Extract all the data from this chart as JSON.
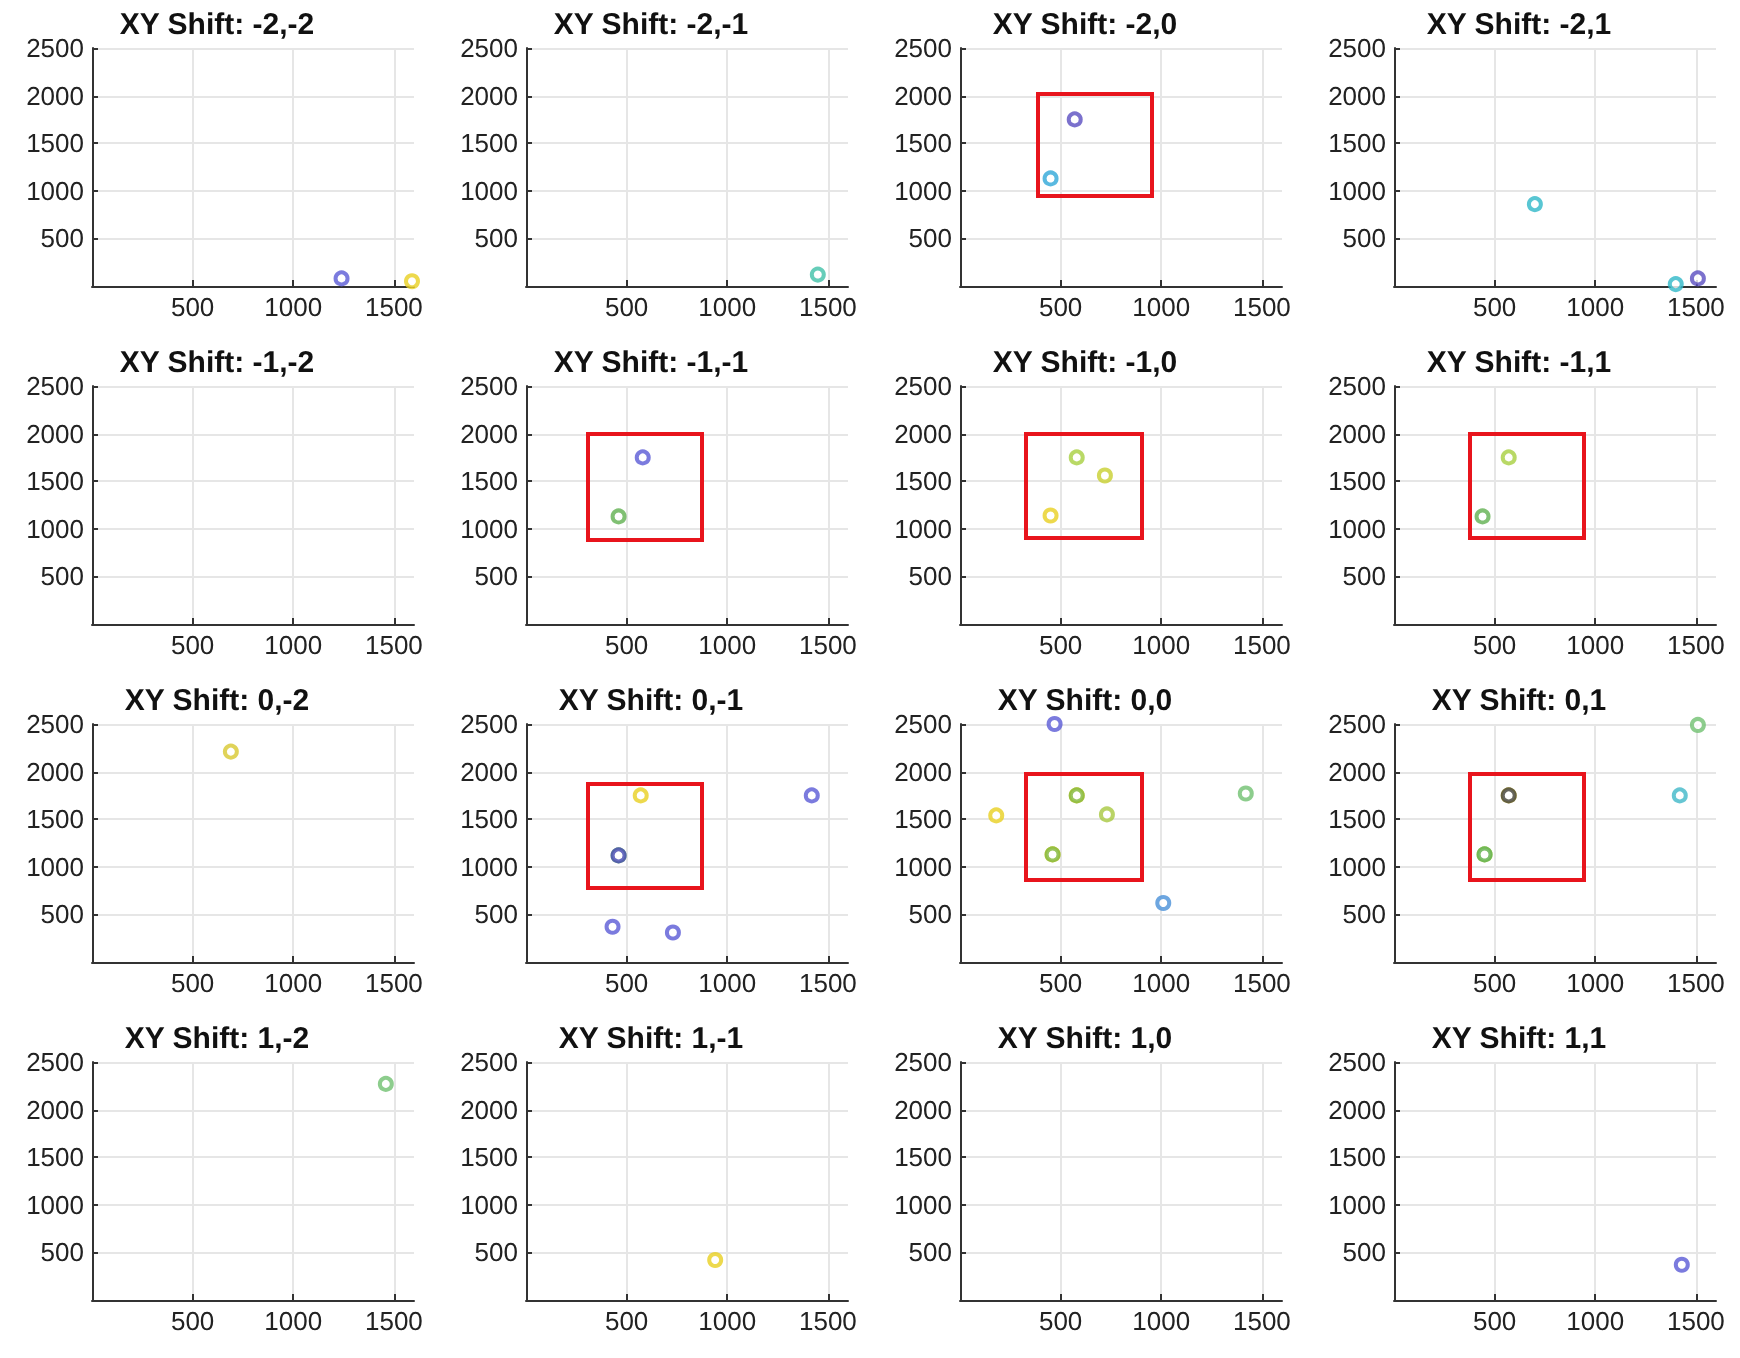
{
  "chart_data": [
    {
      "type": "scatter",
      "title": "XY Shift: -2,-2",
      "xlim": [
        0,
        1600
      ],
      "ylim": [
        0,
        2500
      ],
      "xticks": [
        500,
        1000,
        1500
      ],
      "yticks": [
        500,
        1000,
        1500,
        2000,
        2500
      ],
      "grid": true,
      "marker": "circle",
      "series": [
        {
          "type": "scatter",
          "x": [
            1240,
            1590
          ],
          "values": [
            80,
            50
          ],
          "colors": [
            "#5a5ad6",
            "#e8d020"
          ]
        }
      ]
    },
    {
      "type": "scatter",
      "title": "XY Shift: -2,-1",
      "xlim": [
        0,
        1600
      ],
      "ylim": [
        0,
        2500
      ],
      "xticks": [
        500,
        1000,
        1500
      ],
      "yticks": [
        500,
        1000,
        1500,
        2000,
        2500
      ],
      "grid": true,
      "marker": "circle",
      "series": [
        {
          "type": "scatter",
          "x": [
            1450
          ],
          "values": [
            120
          ],
          "colors": [
            "#40c0a8"
          ]
        }
      ]
    },
    {
      "type": "scatter",
      "title": "XY Shift: -2,0",
      "xlim": [
        0,
        1600
      ],
      "ylim": [
        0,
        2500
      ],
      "xticks": [
        500,
        1000,
        1500
      ],
      "yticks": [
        500,
        1000,
        1500,
        2000,
        2500
      ],
      "grid": true,
      "marker": "circle",
      "series": [
        {
          "type": "scatter",
          "x": [
            570,
            450
          ],
          "values": [
            1750,
            1130
          ],
          "colors": [
            "#5a4ec0",
            "#30a8d8"
          ]
        }
      ]
    },
    {
      "type": "scatter",
      "title": "XY Shift: -2,1",
      "xlim": [
        0,
        1600
      ],
      "ylim": [
        0,
        2500
      ],
      "xticks": [
        500,
        1000,
        1500
      ],
      "yticks": [
        500,
        1000,
        1500,
        2000,
        2500
      ],
      "grid": true,
      "marker": "circle",
      "series": [
        {
          "type": "scatter",
          "x": [
            700,
            1400,
            1510
          ],
          "values": [
            860,
            20,
            80
          ],
          "colors": [
            "#30b8c8",
            "#30b8c8",
            "#5a4ec0"
          ]
        }
      ]
    },
    {
      "type": "scatter",
      "title": "XY Shift: -1,-2",
      "xlim": [
        0,
        1600
      ],
      "ylim": [
        0,
        2500
      ],
      "xticks": [
        500,
        1000,
        1500
      ],
      "yticks": [
        500,
        1000,
        1500,
        2000,
        2500
      ],
      "grid": true
    },
    {
      "type": "scatter",
      "title": "XY Shift: -1,-1",
      "xlim": [
        0,
        1600
      ],
      "ylim": [
        0,
        2500
      ],
      "xticks": [
        500,
        1000,
        1500
      ],
      "yticks": [
        500,
        1000,
        1500,
        2000,
        2500
      ],
      "grid": true,
      "marker": "circle",
      "series": [
        {
          "type": "scatter",
          "x": [
            580,
            460
          ],
          "values": [
            1750,
            1130
          ],
          "colors": [
            "#5a5ad6",
            "#60b050"
          ]
        }
      ]
    },
    {
      "type": "scatter",
      "title": "XY Shift: -1,0",
      "xlim": [
        0,
        1600
      ],
      "ylim": [
        0,
        2500
      ],
      "xticks": [
        500,
        1000,
        1500
      ],
      "yticks": [
        500,
        1000,
        1500,
        2000,
        2500
      ],
      "grid": true,
      "marker": "circle",
      "series": [
        {
          "type": "scatter",
          "x": [
            580,
            720,
            450
          ],
          "values": [
            1750,
            1560,
            1140
          ],
          "colors": [
            "#a8d040",
            "#c8d030",
            "#e8d020"
          ]
        }
      ]
    },
    {
      "type": "scatter",
      "title": "XY Shift: -1,1",
      "xlim": [
        0,
        1600
      ],
      "ylim": [
        0,
        2500
      ],
      "xticks": [
        500,
        1000,
        1500
      ],
      "yticks": [
        500,
        1000,
        1500,
        2000,
        2500
      ],
      "grid": true,
      "marker": "circle",
      "series": [
        {
          "type": "scatter",
          "x": [
            570,
            440
          ],
          "values": [
            1750,
            1130
          ],
          "colors": [
            "#a8d040",
            "#60b050"
          ]
        }
      ]
    },
    {
      "type": "scatter",
      "title": "XY Shift: 0,-2",
      "xlim": [
        0,
        1600
      ],
      "ylim": [
        0,
        2500
      ],
      "xticks": [
        500,
        1000,
        1500
      ],
      "yticks": [
        500,
        1000,
        1500,
        2000,
        2500
      ],
      "grid": true,
      "marker": "circle",
      "series": [
        {
          "type": "scatter",
          "x": [
            690
          ],
          "values": [
            2210
          ],
          "colors": [
            "#d8c830"
          ]
        }
      ]
    },
    {
      "type": "scatter",
      "title": "XY Shift: 0,-1",
      "xlim": [
        0,
        1600
      ],
      "ylim": [
        0,
        2500
      ],
      "xticks": [
        500,
        1000,
        1500
      ],
      "yticks": [
        500,
        1000,
        1500,
        2000,
        2500
      ],
      "grid": true,
      "marker": "circle",
      "series": [
        {
          "type": "scatter",
          "x": [
            570,
            460,
            460,
            1420,
            430,
            730
          ],
          "values": [
            1750,
            1120,
            1120,
            1750,
            370,
            310
          ],
          "colors": [
            "#e8d020",
            "#60b050",
            "#4848b8",
            "#5a5ad6",
            "#5a5ad6",
            "#5a5ad6"
          ]
        }
      ]
    },
    {
      "type": "scatter",
      "title": "XY Shift: 0,0",
      "xlim": [
        0,
        1600
      ],
      "ylim": [
        0,
        2500
      ],
      "xticks": [
        500,
        1000,
        1500
      ],
      "yticks": [
        500,
        1000,
        1500,
        2000,
        2500
      ],
      "grid": true,
      "marker": "circle",
      "series": [
        {
          "type": "scatter",
          "x": [
            470,
            180,
            580,
            580,
            730,
            460,
            460,
            1420,
            1010
          ],
          "values": [
            2500,
            1540,
            1750,
            1750,
            1550,
            1130,
            1130,
            1770,
            620
          ],
          "colors": [
            "#5a5ad6",
            "#e8d020",
            "#e8d020",
            "#80b840",
            "#a8c840",
            "#e8d020",
            "#80b840",
            "#70c070",
            "#4890d8"
          ]
        }
      ]
    },
    {
      "type": "scatter",
      "title": "XY Shift: 0,1",
      "xlim": [
        0,
        1600
      ],
      "ylim": [
        0,
        2500
      ],
      "xticks": [
        500,
        1000,
        1500
      ],
      "yticks": [
        500,
        1000,
        1500,
        2000,
        2500
      ],
      "grid": true,
      "marker": "circle",
      "series": [
        {
          "type": "scatter",
          "x": [
            1510,
            570,
            570,
            450,
            450,
            1420
          ],
          "values": [
            2490,
            1750,
            1750,
            1130,
            1130,
            1750
          ],
          "colors": [
            "#70c070",
            "#e8d020",
            "#404040",
            "#a8d040",
            "#60b050",
            "#40b8c8"
          ]
        }
      ]
    },
    {
      "type": "scatter",
      "title": "XY Shift: 1,-2",
      "xlim": [
        0,
        1600
      ],
      "ylim": [
        0,
        2500
      ],
      "xticks": [
        500,
        1000,
        1500
      ],
      "yticks": [
        500,
        1000,
        1500,
        2000,
        2500
      ],
      "grid": true,
      "marker": "circle",
      "series": [
        {
          "type": "scatter",
          "x": [
            1460
          ],
          "values": [
            2270
          ],
          "colors": [
            "#70c070"
          ]
        }
      ]
    },
    {
      "type": "scatter",
      "title": "XY Shift: 1,-1",
      "xlim": [
        0,
        1600
      ],
      "ylim": [
        0,
        2500
      ],
      "xticks": [
        500,
        1000,
        1500
      ],
      "yticks": [
        500,
        1000,
        1500,
        2000,
        2500
      ],
      "grid": true,
      "marker": "circle",
      "series": [
        {
          "type": "scatter",
          "x": [
            940
          ],
          "values": [
            420
          ],
          "colors": [
            "#e8d020"
          ]
        }
      ]
    },
    {
      "type": "scatter",
      "title": "XY Shift: 1,0",
      "xlim": [
        0,
        1600
      ],
      "ylim": [
        0,
        2500
      ],
      "xticks": [
        500,
        1000,
        1500
      ],
      "yticks": [
        500,
        1000,
        1500,
        2000,
        2500
      ],
      "grid": true
    },
    {
      "type": "scatter",
      "title": "XY Shift: 1,1",
      "xlim": [
        0,
        1600
      ],
      "ylim": [
        0,
        2500
      ],
      "xticks": [
        500,
        1000,
        1500
      ],
      "yticks": [
        500,
        1000,
        1500,
        2000,
        2500
      ],
      "grid": true,
      "marker": "circle",
      "series": [
        {
          "type": "scatter",
          "x": [
            1430
          ],
          "values": [
            370
          ],
          "colors": [
            "#5a5ad6"
          ]
        }
      ]
    }
  ]
}
